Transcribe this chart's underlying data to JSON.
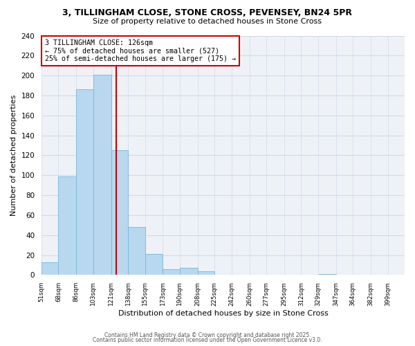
{
  "title_line1": "3, TILLINGHAM CLOSE, STONE CROSS, PEVENSEY, BN24 5PR",
  "title_line2": "Size of property relative to detached houses in Stone Cross",
  "xlabel": "Distribution of detached houses by size in Stone Cross",
  "ylabel": "Number of detached properties",
  "bar_color": "#b8d8f0",
  "bar_edgecolor": "#7ab4d8",
  "bin_labels": [
    "51sqm",
    "68sqm",
    "86sqm",
    "103sqm",
    "121sqm",
    "138sqm",
    "155sqm",
    "173sqm",
    "190sqm",
    "208sqm",
    "225sqm",
    "242sqm",
    "260sqm",
    "277sqm",
    "295sqm",
    "312sqm",
    "329sqm",
    "347sqm",
    "364sqm",
    "382sqm",
    "399sqm"
  ],
  "bar_heights": [
    13,
    99,
    186,
    201,
    125,
    48,
    21,
    6,
    7,
    4,
    0,
    0,
    0,
    0,
    0,
    0,
    1,
    0,
    0,
    0,
    0
  ],
  "bin_edges": [
    51,
    68,
    86,
    103,
    121,
    138,
    155,
    173,
    190,
    208,
    225,
    242,
    260,
    277,
    295,
    312,
    329,
    347,
    364,
    382,
    399
  ],
  "vline_x": 126,
  "vline_color": "#cc0000",
  "annotation_title": "3 TILLINGHAM CLOSE: 126sqm",
  "annotation_line1": "← 75% of detached houses are smaller (527)",
  "annotation_line2": "25% of semi-detached houses are larger (175) →",
  "ylim": [
    0,
    240
  ],
  "yticks": [
    0,
    20,
    40,
    60,
    80,
    100,
    120,
    140,
    160,
    180,
    200,
    220,
    240
  ],
  "background_color": "#eef2f7",
  "grid_color": "#d0dae8",
  "footer_line1": "Contains HM Land Registry data © Crown copyright and database right 2025.",
  "footer_line2": "Contains public sector information licensed under the Open Government Licence v3.0."
}
